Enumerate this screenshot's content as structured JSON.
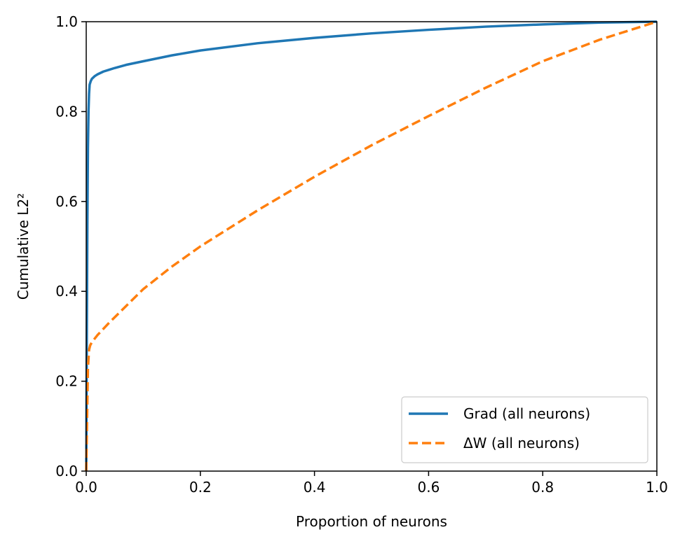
{
  "chart_data": {
    "type": "line",
    "title": "",
    "xlabel": "Proportion of neurons",
    "ylabel": "Cumulative L2²",
    "xlim": [
      0.0,
      1.0
    ],
    "ylim": [
      0.0,
      1.0
    ],
    "xticks": [
      "0.0",
      "0.2",
      "0.4",
      "0.6",
      "0.8",
      "1.0"
    ],
    "yticks": [
      "0.0",
      "0.2",
      "0.4",
      "0.6",
      "0.8",
      "1.0"
    ],
    "grid": false,
    "legend_position": "lower-right",
    "series": [
      {
        "name": "Grad (all neurons)",
        "color": "#1f77b4",
        "style": "solid",
        "x": [
          0.0,
          0.001,
          0.002,
          0.003,
          0.004,
          0.005,
          0.006,
          0.008,
          0.01,
          0.015,
          0.02,
          0.03,
          0.04,
          0.05,
          0.07,
          0.1,
          0.15,
          0.2,
          0.3,
          0.4,
          0.5,
          0.6,
          0.7,
          0.8,
          0.9,
          1.0
        ],
        "y": [
          0.0,
          0.3,
          0.55,
          0.72,
          0.8,
          0.84,
          0.86,
          0.868,
          0.873,
          0.879,
          0.883,
          0.889,
          0.893,
          0.897,
          0.904,
          0.912,
          0.925,
          0.936,
          0.952,
          0.964,
          0.974,
          0.982,
          0.989,
          0.994,
          0.998,
          1.0
        ]
      },
      {
        "name": "ΔW (all neurons)",
        "color": "#ff7f0e",
        "style": "dashed",
        "x": [
          0.0,
          0.001,
          0.002,
          0.003,
          0.005,
          0.007,
          0.01,
          0.02,
          0.04,
          0.06,
          0.1,
          0.15,
          0.2,
          0.25,
          0.3,
          0.4,
          0.5,
          0.6,
          0.7,
          0.8,
          0.9,
          1.0
        ],
        "y": [
          0.0,
          0.08,
          0.16,
          0.23,
          0.27,
          0.28,
          0.287,
          0.303,
          0.33,
          0.355,
          0.405,
          0.455,
          0.5,
          0.54,
          0.58,
          0.655,
          0.725,
          0.79,
          0.853,
          0.912,
          0.96,
          1.0
        ]
      }
    ]
  }
}
